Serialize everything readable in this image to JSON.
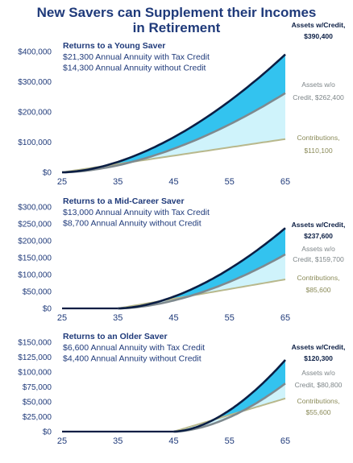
{
  "title_lines": [
    "New Savers can Supplement their Incomes",
    "in Retirement"
  ],
  "colors": {
    "credit_fill": "#33c3ef",
    "nocredit_fill": "#cff3fb",
    "credit_line": "#0b1e44",
    "nocredit_line": "#7f8a8f",
    "contrib_line": "#b8b88c",
    "text": "#1f3a7a"
  },
  "chart_data": [
    {
      "type": "area",
      "heading": "Returns to a Young Saver",
      "sublines": [
        "$21,300 Annual Annuity with Tax Credit",
        "$14,300 Annual Annuity without Credit"
      ],
      "x_ticks": [
        25,
        35,
        45,
        55,
        65
      ],
      "y_ticks": [
        "$0",
        "$100,000",
        "$200,000",
        "$300,000",
        "$400,000"
      ],
      "ylim": [
        0,
        400000
      ],
      "start_age": 25,
      "series": [
        {
          "role": "credit",
          "end_value": 390400,
          "label_lines": [
            "Assets w/Credit,",
            "$390,400"
          ]
        },
        {
          "role": "nocredit",
          "end_value": 262400,
          "label_lines": [
            "Assets w/o",
            "Credit, $262,400"
          ]
        },
        {
          "role": "contrib",
          "end_value": 110100,
          "label_lines": [
            "Contributions,",
            "$110,100"
          ]
        }
      ]
    },
    {
      "type": "area",
      "heading": "Returns to a Mid-Career Saver",
      "sublines": [
        "$13,000 Annual Annuity with Tax Credit",
        "$8,700 Annual Annuity without Credit"
      ],
      "x_ticks": [
        25,
        35,
        45,
        55,
        65
      ],
      "y_ticks": [
        "$0",
        "$50,000",
        "$100,000",
        "$150,000",
        "$200,000",
        "$250,000",
        "$300,000"
      ],
      "ylim": [
        0,
        300000
      ],
      "start_age": 35,
      "series": [
        {
          "role": "credit",
          "end_value": 237600,
          "label_lines": [
            "Assets w/Credit,",
            "$237,600"
          ]
        },
        {
          "role": "nocredit",
          "end_value": 159700,
          "label_lines": [
            "Assets w/o",
            "Credit, $159,700"
          ]
        },
        {
          "role": "contrib",
          "end_value": 85600,
          "label_lines": [
            "Contributions,",
            "$85,600"
          ]
        }
      ]
    },
    {
      "type": "area",
      "heading": "Returns to an Older Saver",
      "sublines": [
        "$6,600 Annual Annuity with Tax Credit",
        "$4,400 Annual Annuity without Credit"
      ],
      "x_ticks": [
        25,
        35,
        45,
        55,
        65
      ],
      "y_ticks": [
        "$0",
        "$25,000",
        "$50,000",
        "$75,000",
        "$100,000",
        "$125,000",
        "$150,000"
      ],
      "ylim": [
        0,
        150000
      ],
      "start_age": 45,
      "series": [
        {
          "role": "credit",
          "end_value": 120300,
          "label_lines": [
            "Assets w/Credit,",
            "$120,300"
          ]
        },
        {
          "role": "nocredit",
          "end_value": 80800,
          "label_lines": [
            "Assets w/o",
            "Credit, $80,800"
          ]
        },
        {
          "role": "contrib",
          "end_value": 55600,
          "label_lines": [
            "Contributions,",
            "$55,600"
          ]
        }
      ]
    }
  ]
}
